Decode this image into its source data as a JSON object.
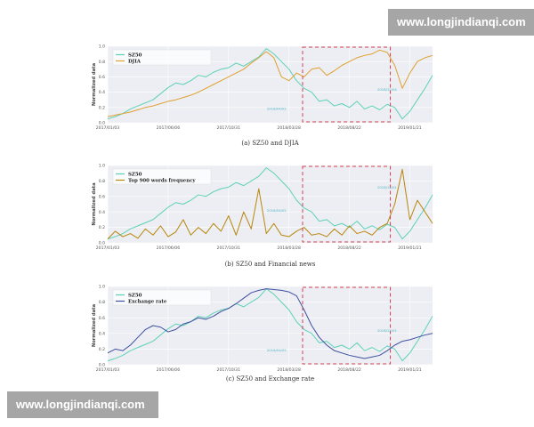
{
  "watermark_top": "www.longjindianqi.com",
  "watermark_bottom": "www.longjindianqi.com",
  "colors": {
    "sz50": "#5ed1b8",
    "djia": "#e0a030",
    "news": "#b8860b",
    "exchange": "#3f4fa0",
    "box": "#d04050",
    "panel_bg": "#eceef3",
    "grid": "#ffffff"
  },
  "chart_data": [
    {
      "type": "line",
      "caption": "(a)  SZ50 and DJIA",
      "ylabel": "Normalized data",
      "ylim": [
        0,
        1.0
      ],
      "y_ticks": [
        "0.0",
        "0.2",
        "0.4",
        "0.6",
        "0.8",
        "1.0"
      ],
      "x_ticks": [
        "2017/01/03",
        "2017/06/06",
        "2017/10/31",
        "2018/03/28",
        "2018/08/22",
        "2019/01/21"
      ],
      "highlight_box_label": "dashed-red",
      "annotations": [
        "2018/04/02",
        "2018/12/04"
      ],
      "series": [
        {
          "name": "SZ50",
          "color_key": "sz50",
          "values": [
            0.05,
            0.08,
            0.12,
            0.18,
            0.22,
            0.26,
            0.3,
            0.38,
            0.46,
            0.52,
            0.5,
            0.55,
            0.62,
            0.6,
            0.66,
            0.7,
            0.72,
            0.78,
            0.74,
            0.8,
            0.86,
            0.97,
            0.9,
            0.8,
            0.7,
            0.55,
            0.45,
            0.4,
            0.28,
            0.3,
            0.22,
            0.25,
            0.2,
            0.28,
            0.18,
            0.22,
            0.17,
            0.24,
            0.2,
            0.05,
            0.15,
            0.3,
            0.45,
            0.62
          ]
        },
        {
          "name": "DJIA",
          "color_key": "djia",
          "values": [
            0.08,
            0.1,
            0.12,
            0.14,
            0.17,
            0.2,
            0.22,
            0.25,
            0.28,
            0.3,
            0.33,
            0.36,
            0.4,
            0.45,
            0.5,
            0.55,
            0.6,
            0.65,
            0.7,
            0.78,
            0.85,
            0.93,
            0.85,
            0.6,
            0.55,
            0.65,
            0.6,
            0.7,
            0.72,
            0.62,
            0.68,
            0.75,
            0.8,
            0.85,
            0.88,
            0.9,
            0.95,
            0.92,
            0.75,
            0.45,
            0.65,
            0.8,
            0.85,
            0.88
          ]
        }
      ]
    },
    {
      "type": "line",
      "caption": "(b)  SZ50 and Financial news",
      "ylabel": "Normalized data",
      "ylim": [
        0,
        1.0
      ],
      "y_ticks": [
        "0.0",
        "0.2",
        "0.4",
        "0.6",
        "0.8",
        "1.0"
      ],
      "x_ticks": [
        "2017/01/03",
        "2017/06/06",
        "2017/10/31",
        "2018/03/28",
        "2018/08/22",
        "2019/01/21"
      ],
      "highlight_box_label": "dashed-red",
      "annotations": [
        "2018/04/02",
        "2018/12/01"
      ],
      "series": [
        {
          "name": "SZ50",
          "color_key": "sz50",
          "values": [
            0.05,
            0.08,
            0.12,
            0.18,
            0.22,
            0.26,
            0.3,
            0.38,
            0.46,
            0.52,
            0.5,
            0.55,
            0.62,
            0.6,
            0.66,
            0.7,
            0.72,
            0.78,
            0.74,
            0.8,
            0.86,
            0.97,
            0.9,
            0.8,
            0.7,
            0.55,
            0.45,
            0.4,
            0.28,
            0.3,
            0.22,
            0.25,
            0.2,
            0.28,
            0.18,
            0.22,
            0.17,
            0.24,
            0.2,
            0.05,
            0.15,
            0.3,
            0.45,
            0.62
          ]
        },
        {
          "name": "Top 900 words frequency",
          "color_key": "news",
          "values": [
            0.05,
            0.15,
            0.08,
            0.12,
            0.06,
            0.18,
            0.1,
            0.22,
            0.08,
            0.14,
            0.3,
            0.1,
            0.2,
            0.12,
            0.25,
            0.15,
            0.35,
            0.1,
            0.4,
            0.18,
            0.7,
            0.12,
            0.25,
            0.1,
            0.08,
            0.15,
            0.2,
            0.1,
            0.12,
            0.08,
            0.18,
            0.1,
            0.22,
            0.12,
            0.15,
            0.1,
            0.2,
            0.25,
            0.5,
            0.95,
            0.3,
            0.55,
            0.4,
            0.25
          ]
        }
      ]
    },
    {
      "type": "line",
      "caption": "(c)  SZ50 and Exchange rate",
      "ylabel": "Normalized data",
      "ylim": [
        0,
        1.0
      ],
      "y_ticks": [
        "0.0",
        "0.2",
        "0.4",
        "0.6",
        "0.8",
        "1.0"
      ],
      "x_ticks": [
        "2017/01/03",
        "2017/06/06",
        "2017/10/31",
        "2018/03/28",
        "2018/08/22",
        "2019/01/21"
      ],
      "highlight_box_label": "dashed-red",
      "annotations": [
        "2018/04/02",
        "2018/12/01"
      ],
      "series": [
        {
          "name": "SZ50",
          "color_key": "sz50",
          "values": [
            0.05,
            0.08,
            0.12,
            0.18,
            0.22,
            0.26,
            0.3,
            0.38,
            0.46,
            0.52,
            0.5,
            0.55,
            0.62,
            0.6,
            0.66,
            0.7,
            0.72,
            0.78,
            0.74,
            0.8,
            0.86,
            0.97,
            0.9,
            0.8,
            0.7,
            0.55,
            0.45,
            0.4,
            0.28,
            0.3,
            0.22,
            0.25,
            0.2,
            0.28,
            0.18,
            0.22,
            0.17,
            0.24,
            0.2,
            0.05,
            0.15,
            0.3,
            0.45,
            0.62
          ]
        },
        {
          "name": "Exchange rate",
          "color_key": "exchange",
          "values": [
            0.15,
            0.2,
            0.18,
            0.25,
            0.35,
            0.45,
            0.5,
            0.48,
            0.42,
            0.45,
            0.52,
            0.55,
            0.6,
            0.58,
            0.62,
            0.68,
            0.72,
            0.78,
            0.85,
            0.92,
            0.95,
            0.97,
            0.96,
            0.95,
            0.93,
            0.88,
            0.7,
            0.5,
            0.35,
            0.25,
            0.18,
            0.15,
            0.12,
            0.1,
            0.08,
            0.1,
            0.12,
            0.18,
            0.25,
            0.3,
            0.32,
            0.35,
            0.38,
            0.4
          ]
        }
      ]
    }
  ]
}
